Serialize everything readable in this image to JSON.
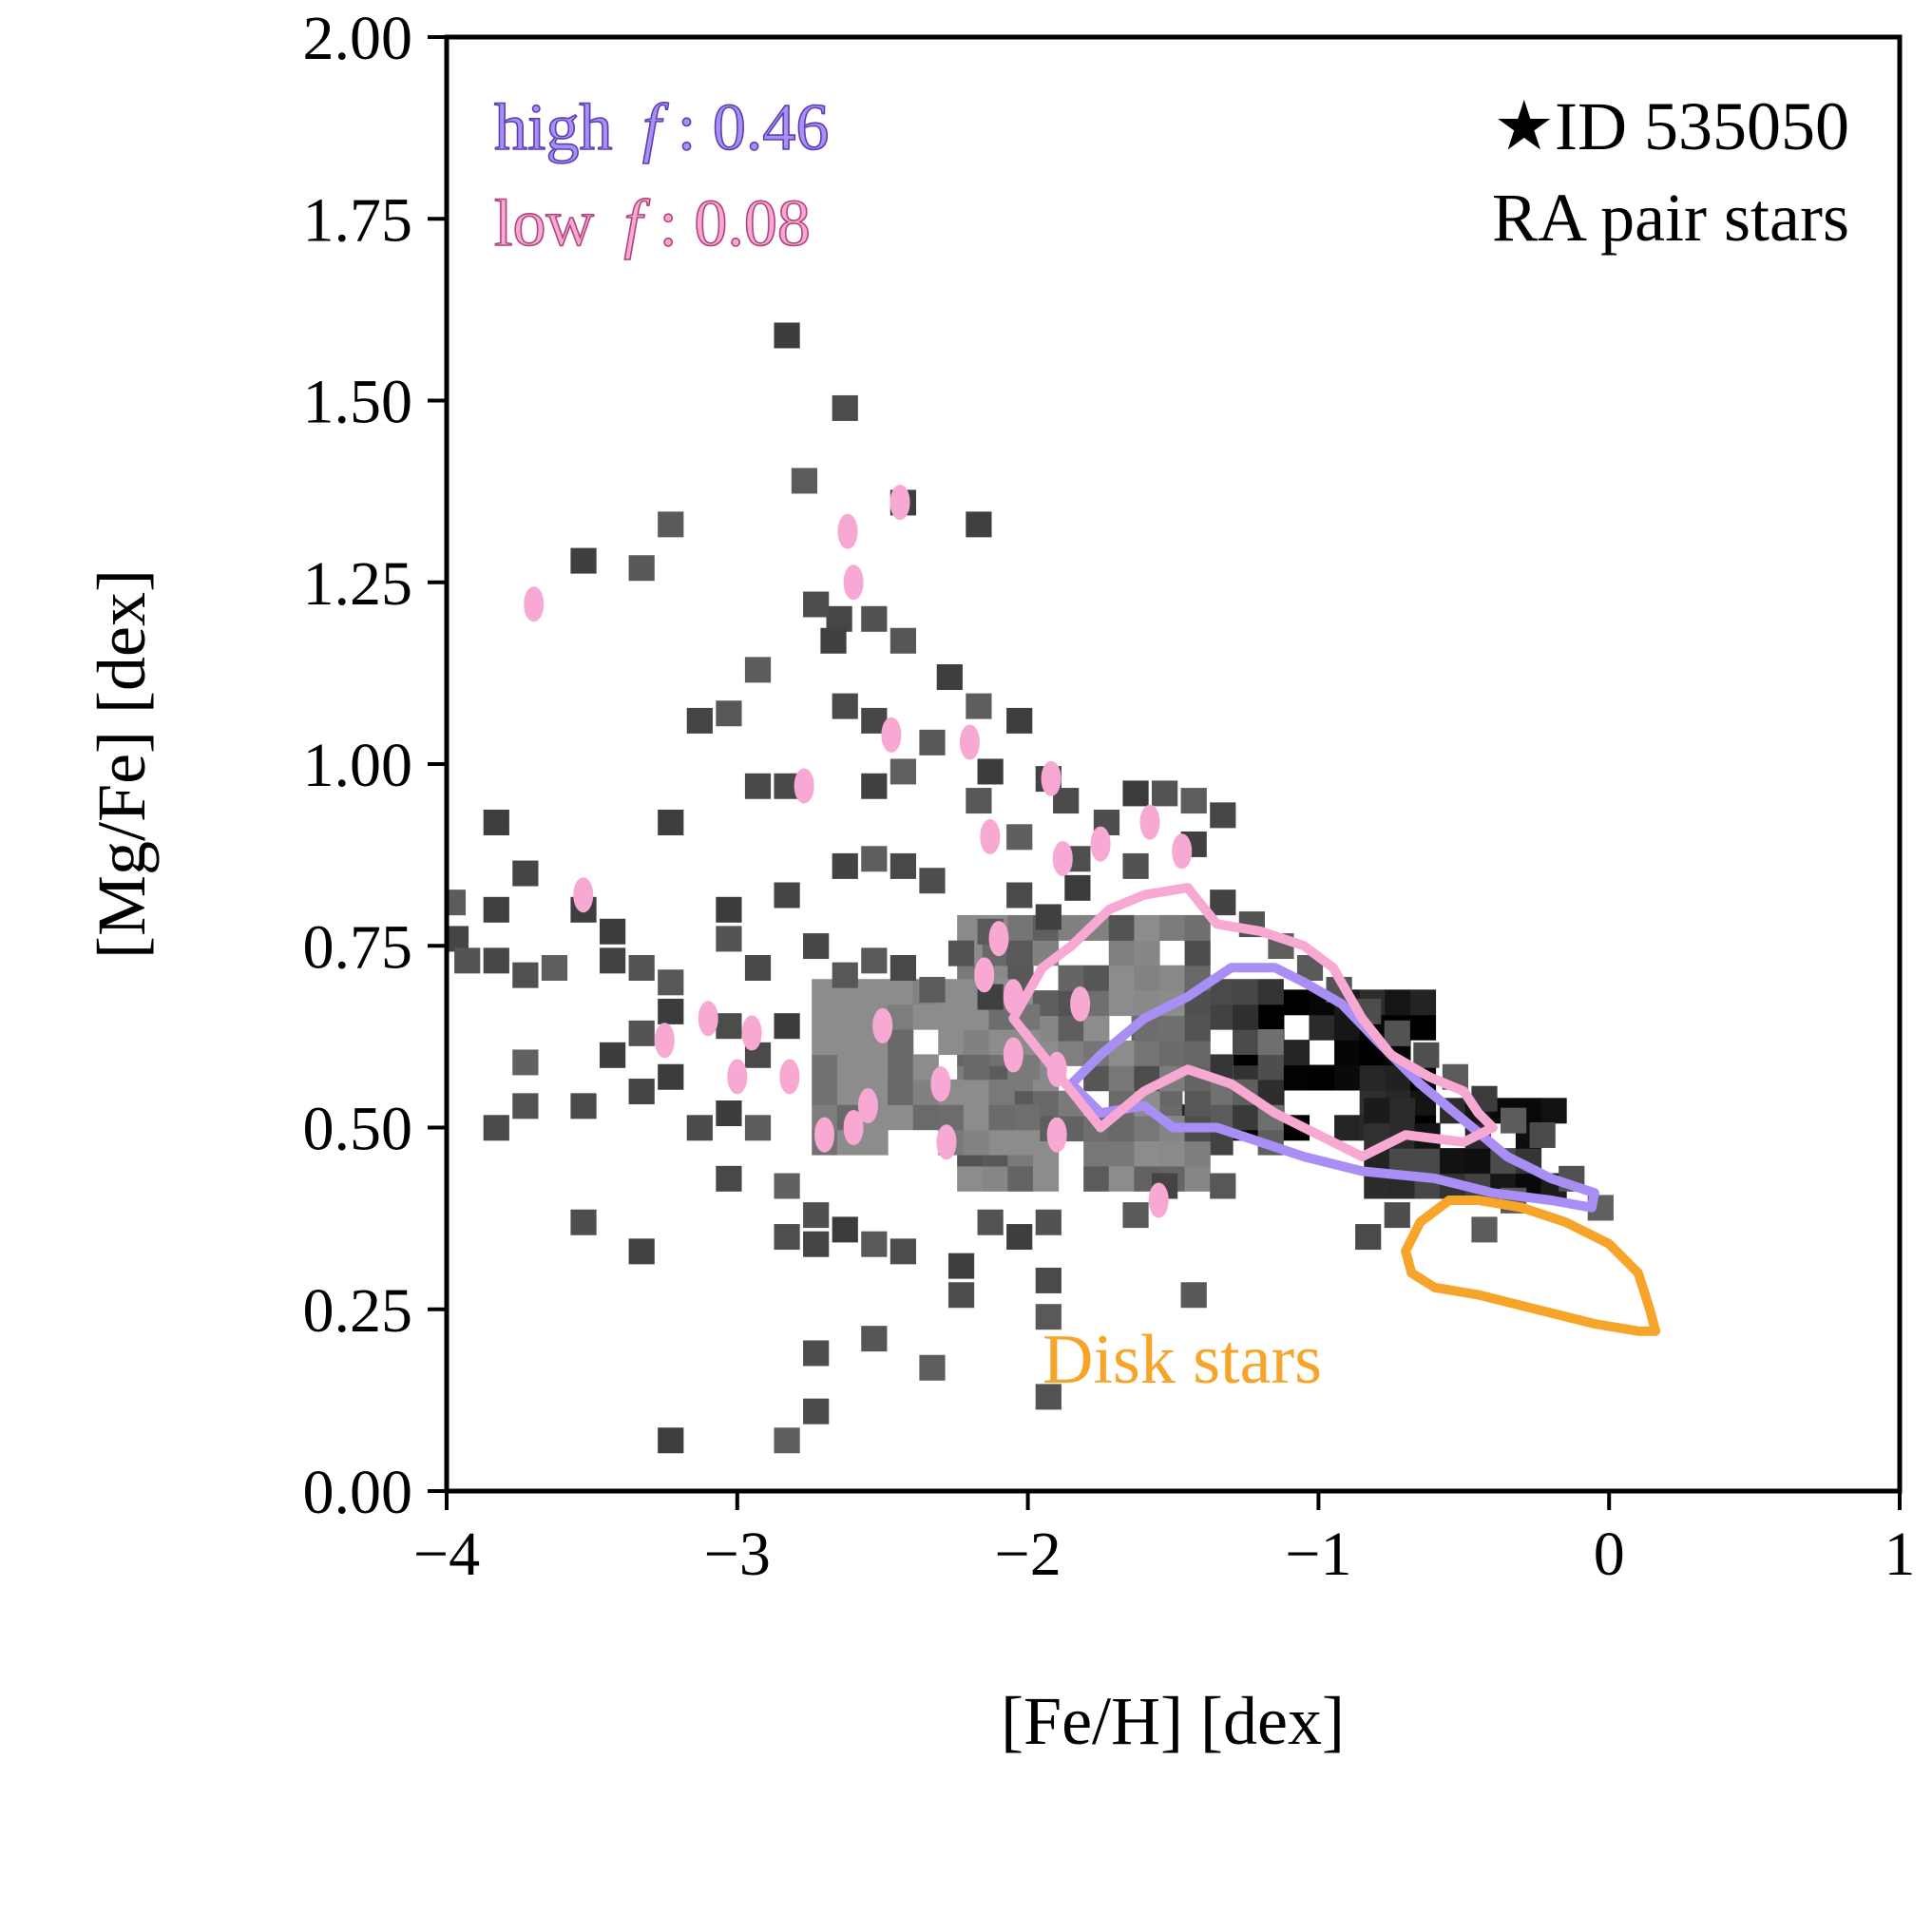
{
  "chart_data": {
    "type": "heatmap",
    "title": "",
    "xlabel": "[Fe/H] [dex]",
    "ylabel": "[Mg/Fe] [dex]",
    "xlim": [
      -4,
      1
    ],
    "ylim": [
      0.0,
      2.0
    ],
    "x_ticks": [
      -4,
      -3,
      -2,
      -1,
      0,
      1
    ],
    "x_tick_labels": [
      "−4",
      "−3",
      "−2",
      "−1",
      "0",
      "1"
    ],
    "y_ticks": [
      0.0,
      0.25,
      0.5,
      0.75,
      1.0,
      1.25,
      1.5,
      1.75,
      2.0
    ],
    "y_tick_labels": [
      "0.00",
      "0.25",
      "0.50",
      "0.75",
      "1.00",
      "1.25",
      "1.50",
      "1.75",
      "2.00"
    ],
    "grid": false,
    "annotations": {
      "star_id": "★ID 535050",
      "sample": "RA pair stars",
      "high_f_label": "high",
      "high_f_symbol": "f",
      "high_f_value": ": 0.46",
      "low_f_label": "low",
      "low_f_symbol": "f",
      "low_f_value": ": 0.08",
      "disk_label": "Disk stars"
    },
    "colors": {
      "high_f": "#a98ef5",
      "low_f": "#f7a8d3",
      "disk": "#f7a52a",
      "histogram": "#000000"
    },
    "histogram_2d": {
      "cell_dx": 0.087,
      "cell_dy": 0.0345,
      "core_regions": [
        {
          "feh_min": -1.25,
          "feh_max": -0.6,
          "mgfe_min": 0.5,
          "mgfe_max": 0.68,
          "density": 0.95
        },
        {
          "feh_min": -0.8,
          "feh_max": -0.15,
          "mgfe_min": 0.42,
          "mgfe_max": 0.55,
          "density": 0.85
        },
        {
          "feh_min": -1.6,
          "feh_max": -1.1,
          "mgfe_min": 0.48,
          "mgfe_max": 0.72,
          "density": 0.7
        },
        {
          "feh_min": -2.2,
          "feh_max": -1.4,
          "mgfe_min": 0.43,
          "mgfe_max": 0.8,
          "density": 0.55
        },
        {
          "feh_min": -2.7,
          "feh_max": -2.0,
          "mgfe_min": 0.48,
          "mgfe_max": 0.72,
          "density": 0.45
        }
      ],
      "sparse_points": [
        [
          -2.83,
          1.59
        ],
        [
          -2.63,
          1.49
        ],
        [
          -2.77,
          1.39
        ],
        [
          -2.43,
          1.36
        ],
        [
          -3.23,
          1.33
        ],
        [
          -2.17,
          1.33
        ],
        [
          -3.53,
          1.28
        ],
        [
          -3.33,
          1.27
        ],
        [
          -2.65,
          1.2
        ],
        [
          -2.53,
          1.2
        ],
        [
          -2.73,
          1.22
        ],
        [
          -2.93,
          1.13
        ],
        [
          -2.67,
          1.17
        ],
        [
          -2.43,
          1.17
        ],
        [
          -2.27,
          1.12
        ],
        [
          -3.03,
          1.07
        ],
        [
          -2.63,
          1.08
        ],
        [
          -2.53,
          1.06
        ],
        [
          -2.17,
          1.08
        ],
        [
          -2.33,
          1.03
        ],
        [
          -2.03,
          1.06
        ],
        [
          -2.13,
          0.99
        ],
        [
          -2.43,
          0.99
        ],
        [
          -1.93,
          0.98
        ],
        [
          -3.13,
          1.06
        ],
        [
          -2.93,
          0.97
        ],
        [
          -2.83,
          0.97
        ],
        [
          -2.53,
          0.97
        ],
        [
          -2.17,
          0.95
        ],
        [
          -1.87,
          0.95
        ],
        [
          -1.63,
          0.96
        ],
        [
          -1.53,
          0.96
        ],
        [
          -1.43,
          0.95
        ],
        [
          -1.33,
          0.93
        ],
        [
          -1.43,
          0.89
        ],
        [
          -3.83,
          0.92
        ],
        [
          -3.23,
          0.92
        ],
        [
          -2.53,
          0.87
        ],
        [
          -2.43,
          0.86
        ],
        [
          -2.63,
          0.86
        ],
        [
          -2.33,
          0.84
        ],
        [
          -2.83,
          0.82
        ],
        [
          -3.03,
          0.8
        ],
        [
          -3.53,
          0.8
        ],
        [
          -3.43,
          0.77
        ],
        [
          -3.83,
          0.8
        ],
        [
          -3.73,
          0.85
        ],
        [
          -3.98,
          0.81
        ],
        [
          -3.97,
          0.76
        ],
        [
          -3.93,
          0.73
        ],
        [
          -3.83,
          0.73
        ],
        [
          -3.73,
          0.71
        ],
        [
          -3.63,
          0.72
        ],
        [
          -3.43,
          0.73
        ],
        [
          -3.33,
          0.72
        ],
        [
          -3.23,
          0.7
        ],
        [
          -3.03,
          0.76
        ],
        [
          -2.93,
          0.72
        ],
        [
          -2.73,
          0.75
        ],
        [
          -2.63,
          0.71
        ],
        [
          -2.53,
          0.73
        ],
        [
          -2.43,
          0.72
        ],
        [
          -3.33,
          0.63
        ],
        [
          -3.43,
          0.6
        ],
        [
          -3.23,
          0.66
        ],
        [
          -3.03,
          0.64
        ],
        [
          -2.93,
          0.6
        ],
        [
          -2.83,
          0.64
        ],
        [
          -3.73,
          0.53
        ],
        [
          -3.73,
          0.59
        ],
        [
          -3.53,
          0.53
        ],
        [
          -3.33,
          0.55
        ],
        [
          -3.23,
          0.57
        ],
        [
          -3.13,
          0.5
        ],
        [
          -3.03,
          0.52
        ],
        [
          -2.93,
          0.5
        ],
        [
          -3.83,
          0.5
        ],
        [
          -3.03,
          0.43
        ],
        [
          -2.83,
          0.42
        ],
        [
          -2.73,
          0.38
        ],
        [
          -2.63,
          0.36
        ],
        [
          -2.53,
          0.34
        ],
        [
          -2.43,
          0.33
        ],
        [
          -3.53,
          0.37
        ],
        [
          -3.33,
          0.33
        ],
        [
          -2.83,
          0.35
        ],
        [
          -2.73,
          0.34
        ],
        [
          -2.23,
          0.31
        ],
        [
          -2.13,
          0.37
        ],
        [
          -2.03,
          0.35
        ],
        [
          -1.93,
          0.37
        ],
        [
          -2.23,
          0.27
        ],
        [
          -1.93,
          0.29
        ],
        [
          -1.93,
          0.24
        ],
        [
          -1.43,
          0.27
        ],
        [
          -2.53,
          0.21
        ],
        [
          -2.73,
          0.19
        ],
        [
          -2.33,
          0.17
        ],
        [
          -1.93,
          0.13
        ],
        [
          -2.73,
          0.11
        ],
        [
          -2.83,
          0.07
        ],
        [
          -3.23,
          0.07
        ],
        [
          -1.63,
          0.38
        ],
        [
          -1.53,
          0.42
        ],
        [
          -1.33,
          0.42
        ],
        [
          -0.83,
          0.35
        ],
        [
          -0.73,
          0.38
        ],
        [
          -0.43,
          0.36
        ],
        [
          -0.33,
          0.4
        ],
        [
          -0.03,
          0.39
        ],
        [
          -0.13,
          0.43
        ],
        [
          -1.73,
          0.92
        ],
        [
          -1.83,
          0.87
        ],
        [
          -2.03,
          0.9
        ],
        [
          -1.63,
          0.86
        ],
        [
          -1.33,
          0.81
        ],
        [
          -1.23,
          0.78
        ],
        [
          -1.13,
          0.75
        ],
        [
          -1.03,
          0.72
        ],
        [
          -0.93,
          0.69
        ],
        [
          -0.83,
          0.66
        ],
        [
          -0.73,
          0.63
        ],
        [
          -0.63,
          0.6
        ],
        [
          -0.53,
          0.57
        ],
        [
          -0.43,
          0.54
        ],
        [
          -0.33,
          0.51
        ],
        [
          -0.23,
          0.49
        ],
        [
          -2.03,
          0.82
        ],
        [
          -2.13,
          0.77
        ],
        [
          -2.23,
          0.74
        ],
        [
          -2.33,
          0.69
        ],
        [
          -2.13,
          0.68
        ],
        [
          -2.03,
          0.74
        ],
        [
          -1.93,
          0.79
        ],
        [
          -1.83,
          0.83
        ]
      ]
    },
    "contours": {
      "high_f": [
        [
          -1.85,
          0.56
        ],
        [
          -1.75,
          0.6
        ],
        [
          -1.6,
          0.65
        ],
        [
          -1.45,
          0.68
        ],
        [
          -1.3,
          0.72
        ],
        [
          -1.15,
          0.72
        ],
        [
          -1.05,
          0.7
        ],
        [
          -0.92,
          0.67
        ],
        [
          -0.8,
          0.62
        ],
        [
          -0.65,
          0.56
        ],
        [
          -0.5,
          0.51
        ],
        [
          -0.35,
          0.46
        ],
        [
          -0.2,
          0.43
        ],
        [
          -0.05,
          0.41
        ],
        [
          -0.06,
          0.39
        ],
        [
          -0.2,
          0.4
        ],
        [
          -0.4,
          0.41
        ],
        [
          -0.6,
          0.43
        ],
        [
          -0.85,
          0.44
        ],
        [
          -1.05,
          0.46
        ],
        [
          -1.2,
          0.48
        ],
        [
          -1.35,
          0.5
        ],
        [
          -1.5,
          0.5
        ],
        [
          -1.6,
          0.53
        ],
        [
          -1.75,
          0.52
        ],
        [
          -1.85,
          0.56
        ]
      ],
      "low_f": [
        [
          -2.05,
          0.65
        ],
        [
          -1.95,
          0.72
        ],
        [
          -1.85,
          0.75
        ],
        [
          -1.72,
          0.8
        ],
        [
          -1.6,
          0.82
        ],
        [
          -1.45,
          0.83
        ],
        [
          -1.35,
          0.78
        ],
        [
          -1.2,
          0.77
        ],
        [
          -1.05,
          0.75
        ],
        [
          -0.95,
          0.72
        ],
        [
          -0.85,
          0.65
        ],
        [
          -0.75,
          0.6
        ],
        [
          -0.62,
          0.57
        ],
        [
          -0.5,
          0.55
        ],
        [
          -0.45,
          0.52
        ],
        [
          -0.4,
          0.5
        ],
        [
          -0.5,
          0.48
        ],
        [
          -0.7,
          0.49
        ],
        [
          -0.85,
          0.46
        ],
        [
          -1.0,
          0.49
        ],
        [
          -1.15,
          0.52
        ],
        [
          -1.3,
          0.56
        ],
        [
          -1.45,
          0.58
        ],
        [
          -1.6,
          0.55
        ],
        [
          -1.75,
          0.5
        ],
        [
          -1.85,
          0.55
        ],
        [
          -1.95,
          0.6
        ],
        [
          -2.05,
          0.65
        ]
      ],
      "low_f_blobs": [
        [
          -3.7,
          1.22
        ],
        [
          -3.53,
          0.82
        ],
        [
          -3.25,
          0.62
        ],
        [
          -3.1,
          0.65
        ],
        [
          -2.95,
          0.63
        ],
        [
          -3.0,
          0.57
        ],
        [
          -2.82,
          0.57
        ],
        [
          -2.7,
          0.49
        ],
        [
          -2.55,
          0.53
        ],
        [
          -2.5,
          0.64
        ],
        [
          -2.6,
          0.5
        ],
        [
          -2.77,
          0.97
        ],
        [
          -2.62,
          1.32
        ],
        [
          -2.6,
          1.25
        ],
        [
          -2.44,
          1.36
        ],
        [
          -2.47,
          1.04
        ],
        [
          -2.2,
          1.03
        ],
        [
          -1.92,
          0.98
        ],
        [
          -2.13,
          0.9
        ],
        [
          -1.88,
          0.87
        ],
        [
          -1.75,
          0.89
        ],
        [
          -1.58,
          0.92
        ],
        [
          -1.47,
          0.88
        ],
        [
          -2.28,
          0.48
        ],
        [
          -2.3,
          0.56
        ],
        [
          -2.15,
          0.71
        ],
        [
          -2.1,
          0.76
        ],
        [
          -2.05,
          0.68
        ],
        [
          -2.05,
          0.6
        ],
        [
          -1.9,
          0.58
        ],
        [
          -1.9,
          0.49
        ],
        [
          -1.55,
          0.4
        ],
        [
          -1.82,
          0.67
        ]
      ],
      "disk": [
        [
          -0.7,
          0.33
        ],
        [
          -0.65,
          0.37
        ],
        [
          -0.55,
          0.4
        ],
        [
          -0.45,
          0.4
        ],
        [
          -0.3,
          0.39
        ],
        [
          -0.15,
          0.37
        ],
        [
          0.0,
          0.34
        ],
        [
          0.1,
          0.3
        ],
        [
          0.14,
          0.25
        ],
        [
          0.16,
          0.22
        ],
        [
          0.1,
          0.22
        ],
        [
          -0.05,
          0.23
        ],
        [
          -0.25,
          0.25
        ],
        [
          -0.45,
          0.27
        ],
        [
          -0.6,
          0.28
        ],
        [
          -0.68,
          0.3
        ],
        [
          -0.7,
          0.33
        ]
      ]
    }
  }
}
